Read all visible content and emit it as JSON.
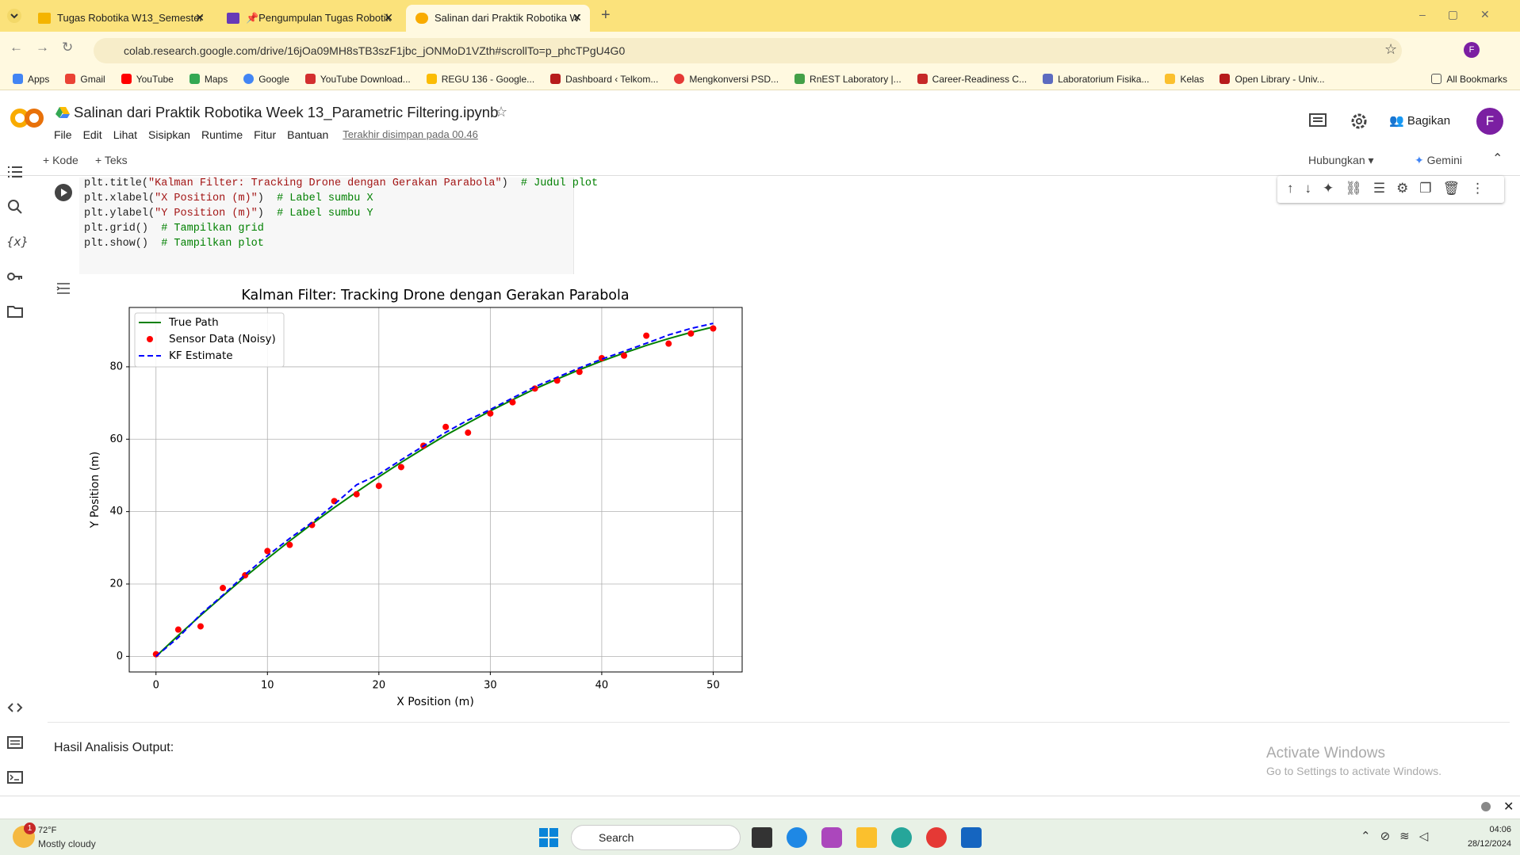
{
  "browser": {
    "tabs": [
      "Tugas Robotika W13_Semester",
      "📌Pengumpulan Tugas Robotik",
      "Salinan dari Praktik Robotika W"
    ],
    "url": "colab.research.google.com/drive/16jOa09MH8sTB3szF1jbc_jONMoD1VZth#scrollTo=p_phcTPgU4G0",
    "avatar": "F",
    "bookmarks": [
      "Apps",
      "Gmail",
      "YouTube",
      "Maps",
      "Google",
      "YouTube Download...",
      "REGU 136 - Google...",
      "Dashboard ‹ Telkom...",
      "Mengkonversi PSD...",
      "RnEST Laboratory |...",
      "Career-Readiness C...",
      "Laboratorium Fisika...",
      "Kelas",
      "Open Library - Univ..."
    ],
    "all_bookmarks": "All Bookmarks"
  },
  "colab": {
    "title": "Salinan dari Praktik Robotika Week 13_Parametric Filtering.ipynb",
    "menu": [
      "File",
      "Edit",
      "Lihat",
      "Sisipkan",
      "Runtime",
      "Fitur",
      "Bantuan"
    ],
    "saved": "Terakhir disimpan pada 00.46",
    "share": "Bagikan",
    "avatar": "F",
    "add_code": "Kode",
    "add_text": "Teks",
    "connect": "Hubungkan",
    "gemini": "Gemini"
  },
  "code": [
    [
      {
        "text": "plt.title(",
        "color": "#1f1f1f"
      },
      {
        "text": "\"Kalman Filter: Tracking Drone dengan Gerakan Parabola\"",
        "color": "#a31515"
      },
      {
        "text": ")  ",
        "color": "#1f1f1f"
      },
      {
        "text": "# Judul plot",
        "color": "#008000"
      }
    ],
    [
      {
        "text": "plt.xlabel(",
        "color": "#1f1f1f"
      },
      {
        "text": "\"X Position (m)\"",
        "color": "#a31515"
      },
      {
        "text": ")  ",
        "color": "#1f1f1f"
      },
      {
        "text": "# Label sumbu X",
        "color": "#008000"
      }
    ],
    [
      {
        "text": "plt.ylabel(",
        "color": "#1f1f1f"
      },
      {
        "text": "\"Y Position (m)\"",
        "color": "#a31515"
      },
      {
        "text": ")  ",
        "color": "#1f1f1f"
      },
      {
        "text": "# Label sumbu Y",
        "color": "#008000"
      }
    ],
    [
      {
        "text": "plt.grid()  ",
        "color": "#1f1f1f"
      },
      {
        "text": "# Tampilkan grid",
        "color": "#008000"
      }
    ],
    [
      {
        "text": "plt.show()  ",
        "color": "#1f1f1f"
      },
      {
        "text": "# Tampilkan plot",
        "color": "#008000"
      }
    ]
  ],
  "chart_data": {
    "type": "line",
    "title": "Kalman Filter: Tracking Drone dengan Gerakan Parabola",
    "x_label": "X Position (m)",
    "y_label": "Y Position (m)",
    "x": [
      0,
      2,
      4,
      6,
      8,
      10,
      12,
      14,
      16,
      18,
      20,
      22,
      24,
      26,
      28,
      30,
      32,
      34,
      36,
      38,
      40,
      42,
      44,
      46,
      48,
      50
    ],
    "series": [
      {
        "name": "True Path",
        "color": "#008000",
        "style": "line",
        "linestyle": "solid",
        "values": [
          0,
          5.8,
          11.3,
          16.7,
          22.0,
          27.0,
          31.9,
          36.6,
          41.1,
          45.4,
          49.6,
          53.6,
          57.4,
          61.1,
          64.5,
          67.8,
          70.9,
          73.9,
          76.6,
          79.2,
          81.6,
          83.8,
          85.9,
          87.8,
          89.5,
          91.0
        ]
      },
      {
        "name": "Sensor Data (Noisy)",
        "color": "#ff0000",
        "style": "scatter",
        "values": [
          0.6,
          7.4,
          8.3,
          18.9,
          22.4,
          29.1,
          30.8,
          36.3,
          42.9,
          44.8,
          47.1,
          52.3,
          58.2,
          63.4,
          61.8,
          67.1,
          70.2,
          74.0,
          76.2,
          78.6,
          82.4,
          83.1,
          88.6,
          86.4,
          89.2,
          90.6
        ]
      },
      {
        "name": "KF Estimate",
        "color": "#0000ff",
        "style": "line",
        "linestyle": "dashed",
        "values": [
          0,
          5.2,
          11.6,
          16.9,
          22.6,
          27.8,
          32.6,
          37.0,
          42.0,
          47.4,
          50.3,
          54.3,
          58.1,
          61.9,
          65.3,
          68.2,
          71.4,
          74.5,
          77.1,
          79.7,
          82.1,
          84.3,
          86.5,
          88.8,
          90.6,
          92.0
        ]
      }
    ],
    "xlim": [
      -2.4,
      52.6
    ],
    "ylim": [
      -4.3,
      96.4
    ],
    "xticks": [
      0,
      10,
      20,
      30,
      40,
      50
    ],
    "yticks": [
      0,
      20,
      40,
      60,
      80
    ],
    "grid": true,
    "legend": "upper left"
  },
  "output_text": "Hasil Analisis Output:",
  "watermark": {
    "title": "Activate Windows",
    "subtitle": "Go to Settings to activate Windows."
  },
  "taskbar": {
    "badge": "1",
    "temperature": "72°F",
    "weather": "Mostly cloudy",
    "search": "Search",
    "time": "04:06",
    "date": "28/12/2024"
  }
}
